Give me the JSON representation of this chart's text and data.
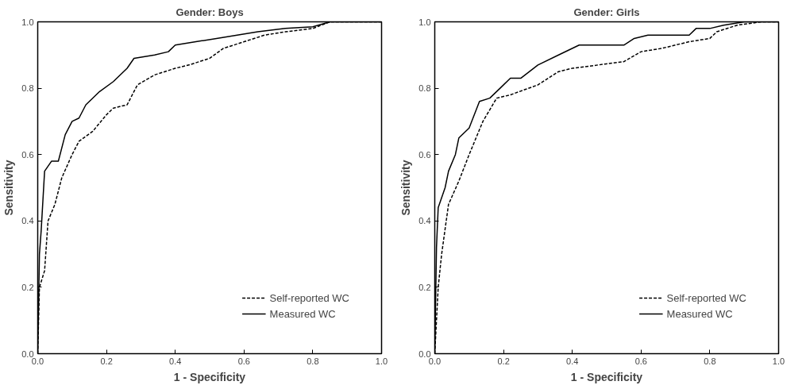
{
  "chart_data": [
    {
      "type": "line",
      "title": "Gender: Boys",
      "xlabel": "1 - Specificity",
      "ylabel": "Sensitivity",
      "xlim": [
        0,
        1
      ],
      "ylim": [
        0,
        1
      ],
      "xticks": [
        {
          "value": 0,
          "label": "0.0"
        },
        {
          "value": 0.2,
          "label": "0.2"
        },
        {
          "value": 0.4,
          "label": "0.4"
        },
        {
          "value": 0.6,
          "label": "0.6"
        },
        {
          "value": 0.8,
          "label": "0.8"
        },
        {
          "value": 1,
          "label": "1.0"
        }
      ],
      "yticks": [
        {
          "value": 0,
          "label": "0.0"
        },
        {
          "value": 0.2,
          "label": "0.2"
        },
        {
          "value": 0.4,
          "label": "0.4"
        },
        {
          "value": 0.6,
          "label": "0.6"
        },
        {
          "value": 0.8,
          "label": "0.8"
        },
        {
          "value": 1,
          "label": "1.0"
        }
      ],
      "grid": false,
      "legend": "bottom right",
      "series": [
        {
          "name": "Self-reported WC",
          "color": "#000000",
          "line_style": "dashed",
          "x": [
            0,
            0.005,
            0.02,
            0.03,
            0.05,
            0.07,
            0.1,
            0.12,
            0.16,
            0.2,
            0.22,
            0.26,
            0.29,
            0.34,
            0.4,
            0.44,
            0.5,
            0.54,
            0.6,
            0.66,
            0.72,
            0.8,
            0.85,
            1.0
          ],
          "values": [
            0,
            0.2,
            0.25,
            0.4,
            0.45,
            0.53,
            0.6,
            0.64,
            0.67,
            0.72,
            0.74,
            0.75,
            0.81,
            0.84,
            0.86,
            0.87,
            0.89,
            0.92,
            0.94,
            0.96,
            0.97,
            0.98,
            1.0,
            1.0
          ]
        },
        {
          "name": "Measured WC",
          "color": "#000000",
          "line_style": "solid",
          "x": [
            0,
            0.005,
            0.01,
            0.02,
            0.04,
            0.06,
            0.08,
            0.1,
            0.12,
            0.14,
            0.18,
            0.22,
            0.26,
            0.28,
            0.34,
            0.38,
            0.4,
            0.46,
            0.52,
            0.58,
            0.64,
            0.72,
            0.8,
            0.85,
            1.0
          ],
          "values": [
            0,
            0.3,
            0.37,
            0.55,
            0.58,
            0.58,
            0.66,
            0.7,
            0.71,
            0.75,
            0.79,
            0.82,
            0.86,
            0.89,
            0.9,
            0.91,
            0.93,
            0.94,
            0.95,
            0.96,
            0.97,
            0.98,
            0.985,
            1.0,
            1.0
          ]
        }
      ]
    },
    {
      "type": "line",
      "title": "Gender: Girls",
      "xlabel": "1 - Specificity",
      "ylabel": "Sensitivity",
      "xlim": [
        0,
        1
      ],
      "ylim": [
        0,
        1
      ],
      "xticks": [
        {
          "value": 0,
          "label": "0.0"
        },
        {
          "value": 0.2,
          "label": "0.2"
        },
        {
          "value": 0.4,
          "label": "0.4"
        },
        {
          "value": 0.6,
          "label": "0.6"
        },
        {
          "value": 0.8,
          "label": "0.8"
        },
        {
          "value": 1,
          "label": "1.0"
        }
      ],
      "yticks": [
        {
          "value": 0,
          "label": "0.0"
        },
        {
          "value": 0.2,
          "label": "0.2"
        },
        {
          "value": 0.4,
          "label": "0.4"
        },
        {
          "value": 0.6,
          "label": "0.6"
        },
        {
          "value": 0.8,
          "label": "0.8"
        },
        {
          "value": 1,
          "label": "1.0"
        }
      ],
      "grid": false,
      "legend": "bottom right",
      "series": [
        {
          "name": "Self-reported WC",
          "color": "#000000",
          "line_style": "dashed",
          "x": [
            0,
            0.01,
            0.02,
            0.04,
            0.07,
            0.1,
            0.14,
            0.18,
            0.22,
            0.3,
            0.36,
            0.4,
            0.55,
            0.6,
            0.66,
            0.74,
            0.8,
            0.82,
            0.88,
            0.95,
            1.0
          ],
          "values": [
            0,
            0.2,
            0.3,
            0.45,
            0.52,
            0.6,
            0.7,
            0.77,
            0.78,
            0.81,
            0.85,
            0.86,
            0.88,
            0.91,
            0.92,
            0.94,
            0.95,
            0.97,
            0.99,
            1.0,
            1.0
          ]
        },
        {
          "name": "Measured WC",
          "color": "#000000",
          "line_style": "solid",
          "x": [
            0,
            0.005,
            0.01,
            0.03,
            0.04,
            0.06,
            0.07,
            0.1,
            0.13,
            0.16,
            0.19,
            0.22,
            0.25,
            0.3,
            0.36,
            0.42,
            0.55,
            0.58,
            0.62,
            0.74,
            0.76,
            0.8,
            0.84,
            0.9,
            1.0
          ],
          "values": [
            0,
            0.32,
            0.44,
            0.5,
            0.55,
            0.6,
            0.65,
            0.68,
            0.76,
            0.77,
            0.8,
            0.83,
            0.83,
            0.87,
            0.9,
            0.93,
            0.93,
            0.95,
            0.96,
            0.96,
            0.98,
            0.98,
            0.99,
            1.0,
            1.0
          ]
        }
      ]
    }
  ]
}
